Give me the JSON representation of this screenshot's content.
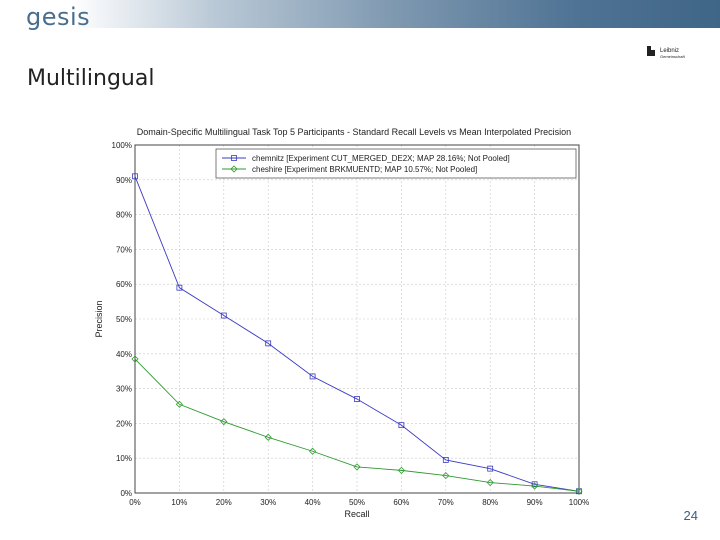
{
  "header": {
    "brand": "gesis",
    "logo_line1": "Leibniz",
    "logo_line2": "Gemeinschaft",
    "accent_color": "#4a6d8c"
  },
  "slide": {
    "title": "Multilingual",
    "page_number": "24"
  },
  "chart_data": {
    "type": "line",
    "title": "Domain-Specific Multilingual Task Top 5 Participants - Standard Recall Levels vs Mean Interpolated Precision",
    "xlabel": "Recall",
    "ylabel": "Precision",
    "x": [
      0,
      10,
      20,
      30,
      40,
      50,
      60,
      70,
      80,
      90,
      100
    ],
    "x_tick_labels": [
      "0%",
      "10%",
      "20%",
      "30%",
      "40%",
      "50%",
      "60%",
      "70%",
      "80%",
      "90%",
      "100%"
    ],
    "y_tick_labels": [
      "0%",
      "10%",
      "20%",
      "30%",
      "40%",
      "50%",
      "60%",
      "70%",
      "80%",
      "90%",
      "100%"
    ],
    "xlim": [
      0,
      100
    ],
    "ylim": [
      0,
      100
    ],
    "grid": true,
    "legend_position": "top-right",
    "series": [
      {
        "name": "chemnitz [Experiment CUT_MERGED_DE2X; MAP 28.16%; Not Pooled]",
        "color": "#3b3bc4",
        "marker": "square",
        "values": [
          91,
          59,
          51,
          43,
          33.5,
          27,
          19.5,
          9.5,
          7,
          2.5,
          0.5
        ]
      },
      {
        "name": "cheshire [Experiment BRKMUENTD; MAP 10.57%; Not Pooled]",
        "color": "#2f9a2f",
        "marker": "diamond",
        "values": [
          38.5,
          25.5,
          20.5,
          16,
          12,
          7.5,
          6.5,
          5,
          3,
          2,
          0.5
        ]
      }
    ]
  }
}
